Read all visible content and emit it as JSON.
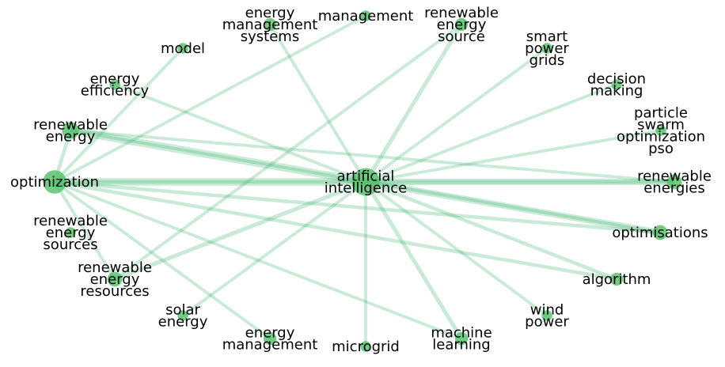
{
  "graph": {
    "nodes": [
      {
        "id": "ai",
        "label": [
          "artificial",
          "intelligence"
        ],
        "weight": 10
      },
      {
        "id": "opt",
        "label": [
          "optimization"
        ],
        "weight": 8
      },
      {
        "id": "re",
        "label": [
          "renewable",
          "energy"
        ],
        "weight": 5
      },
      {
        "id": "ee",
        "label": [
          "energy",
          "efficiency"
        ],
        "weight": 2
      },
      {
        "id": "model",
        "label": [
          "model"
        ],
        "weight": 2
      },
      {
        "id": "ems",
        "label": [
          "energy",
          "management",
          "systems"
        ],
        "weight": 3
      },
      {
        "id": "mgmt",
        "label": [
          "management"
        ],
        "weight": 2
      },
      {
        "id": "res_src",
        "label": [
          "renewable",
          "energy",
          "source"
        ],
        "weight": 3
      },
      {
        "id": "spg",
        "label": [
          "smart",
          "power",
          "grids"
        ],
        "weight": 2
      },
      {
        "id": "dm",
        "label": [
          "decision",
          "making"
        ],
        "weight": 2
      },
      {
        "id": "pso",
        "label": [
          "particle",
          "swarm",
          "optimization",
          "pso"
        ],
        "weight": 2
      },
      {
        "id": "ren_en",
        "label": [
          "renewable",
          "energies"
        ],
        "weight": 4
      },
      {
        "id": "optim",
        "label": [
          "optimisations"
        ],
        "weight": 4
      },
      {
        "id": "algo",
        "label": [
          "algorithm"
        ],
        "weight": 3
      },
      {
        "id": "wind",
        "label": [
          "wind",
          "power"
        ],
        "weight": 2
      },
      {
        "id": "ml",
        "label": [
          "machine",
          "learning"
        ],
        "weight": 3
      },
      {
        "id": "micro",
        "label": [
          "microgrid"
        ],
        "weight": 2
      },
      {
        "id": "em",
        "label": [
          "energy",
          "management"
        ],
        "weight": 3
      },
      {
        "id": "solar",
        "label": [
          "solar",
          "energy"
        ],
        "weight": 2
      },
      {
        "id": "rer",
        "label": [
          "renewable",
          "energy",
          "resources"
        ],
        "weight": 4
      },
      {
        "id": "res",
        "label": [
          "renewable",
          "energy",
          "sources"
        ],
        "weight": 2
      }
    ],
    "edges": [
      {
        "source": "ai",
        "target": "opt",
        "weight": 3
      },
      {
        "source": "ai",
        "target": "re",
        "weight": 3
      },
      {
        "source": "ai",
        "target": "ee",
        "weight": 1.2
      },
      {
        "source": "ai",
        "target": "ems",
        "weight": 1.2
      },
      {
        "source": "ai",
        "target": "res_src",
        "weight": 1.6
      },
      {
        "source": "ai",
        "target": "spg",
        "weight": 1.2
      },
      {
        "source": "ai",
        "target": "dm",
        "weight": 1.2
      },
      {
        "source": "ai",
        "target": "pso",
        "weight": 1.2
      },
      {
        "source": "ai",
        "target": "ren_en",
        "weight": 2.5
      },
      {
        "source": "ai",
        "target": "optim",
        "weight": 2.5
      },
      {
        "source": "ai",
        "target": "algo",
        "weight": 1.4
      },
      {
        "source": "ai",
        "target": "wind",
        "weight": 1.2
      },
      {
        "source": "ai",
        "target": "ml",
        "weight": 1.6
      },
      {
        "source": "ai",
        "target": "micro",
        "weight": 1.2
      },
      {
        "source": "ai",
        "target": "solar",
        "weight": 1.2
      },
      {
        "source": "ai",
        "target": "rer",
        "weight": 1.6
      },
      {
        "source": "opt",
        "target": "re",
        "weight": 1.4
      },
      {
        "source": "opt",
        "target": "model",
        "weight": 1.2
      },
      {
        "source": "opt",
        "target": "mgmt",
        "weight": 1.2
      },
      {
        "source": "opt",
        "target": "ren_en",
        "weight": 1.4
      },
      {
        "source": "opt",
        "target": "optim",
        "weight": 1.4
      },
      {
        "source": "opt",
        "target": "algo",
        "weight": 1.4
      },
      {
        "source": "opt",
        "target": "ml",
        "weight": 1.2
      },
      {
        "source": "opt",
        "target": "em",
        "weight": 1.2
      },
      {
        "source": "opt",
        "target": "rer",
        "weight": 1.2
      },
      {
        "source": "re",
        "target": "ren_en",
        "weight": 1.2
      },
      {
        "source": "re",
        "target": "optim",
        "weight": 1.2
      },
      {
        "source": "rer",
        "target": "res_src",
        "weight": 1.2
      }
    ]
  }
}
